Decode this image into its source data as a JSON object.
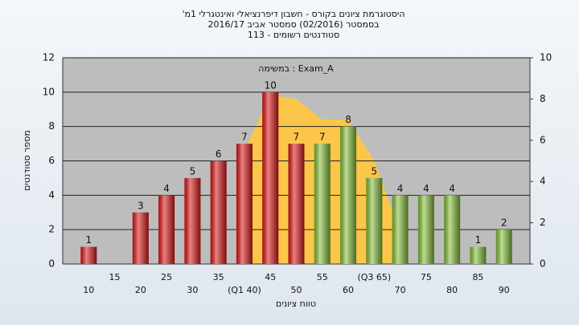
{
  "chart_data": {
    "type": "bar",
    "title": [
      "'היסטוגרמת ציונים בקורס - חשבון דיפרנציאלי ואינטגרלי 1מ",
      "בסמסטר  (02/2016)  סמסטר אביב 2016/17",
      "סטודנטים רשומים - 113"
    ],
    "subtitle": "במשימה : Exam_A",
    "x_label": "טווח ציונים",
    "y_label": "מספר סטודנטים",
    "categories": [
      "10",
      "15",
      "20",
      "25",
      "30",
      "35",
      "(Q1 40)",
      "45",
      "50",
      "55",
      "60",
      "(Q3 65)",
      "70",
      "75",
      "80",
      "85",
      "90"
    ],
    "values": [
      1,
      0,
      3,
      4,
      5,
      6,
      7,
      10,
      7,
      7,
      8,
      5,
      4,
      4,
      4,
      1,
      2
    ],
    "colors": [
      "#e01818",
      "#e01818",
      "#e01818",
      "#e01818",
      "#e01818",
      "#e01818",
      "#e01818",
      "#e01818",
      "#e01818",
      "#86c23a",
      "#86c23a",
      "#86c23a",
      "#86c23a",
      "#86c23a",
      "#86c23a",
      "#86c23a",
      "#86c23a"
    ],
    "area": {
      "axis": "y2",
      "color": "#fcc64a",
      "values": [
        null,
        null,
        null,
        null,
        null,
        null,
        5.5,
        8.2,
        8.0,
        7.0,
        7.0,
        5.0,
        1.5,
        null,
        null,
        null,
        null
      ]
    },
    "ylim": [
      0,
      12
    ],
    "yticks": [
      0,
      2,
      4,
      6,
      8,
      10,
      12
    ],
    "y2lim": [
      0,
      10
    ],
    "y2ticks": [
      0,
      2,
      4,
      6,
      8,
      10
    ],
    "grid": true
  }
}
